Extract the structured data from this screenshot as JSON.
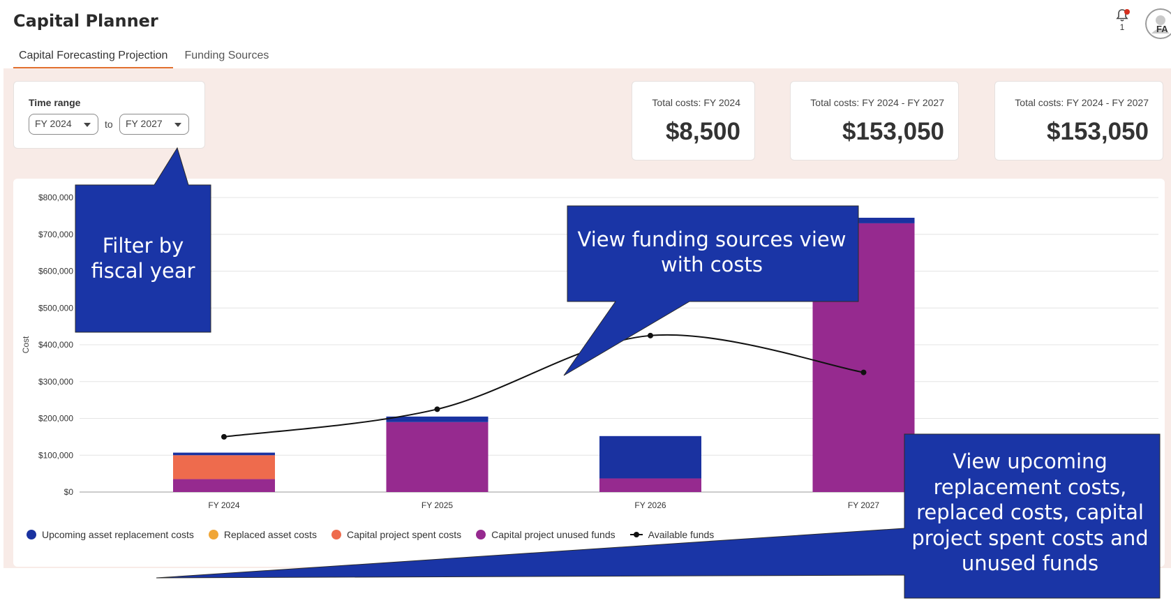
{
  "app": {
    "title": "Capital Planner"
  },
  "header": {
    "notification_count": "1",
    "avatar_initials": "FA",
    "bell_icon": "bell-icon"
  },
  "tabs": [
    {
      "label": "Capital Forecasting Projection",
      "active": true
    },
    {
      "label": "Funding Sources",
      "active": false
    }
  ],
  "time_range": {
    "label": "Time range",
    "from": "FY 2024",
    "to_word": "to",
    "to": "FY 2027"
  },
  "kpis": [
    {
      "label": "Total costs: FY 2024",
      "value": "$8,500"
    },
    {
      "label": "Total costs: FY 2024 - FY 2027",
      "value": "$153,050"
    },
    {
      "label": "Total costs: FY 2024 - FY 2027",
      "value": "$153,050"
    }
  ],
  "colors": {
    "upcoming": "#1a32a0",
    "replaced": "#f0a637",
    "spent": "#ee6b4d",
    "unused": "#962a8f",
    "available": "#111111",
    "accent": "#e2702f",
    "band": "#f8ebe7",
    "callout": "#1a35a6"
  },
  "chart_data": {
    "type": "bar",
    "stacked": true,
    "categories": [
      "FY 2024",
      "FY 2025",
      "FY 2026",
      "FY 2027"
    ],
    "ylabel": "Cost",
    "ylim": [
      0,
      800000
    ],
    "yticks": [
      "$0",
      "$100,000",
      "$200,000",
      "$300,000",
      "$400,000",
      "$500,000",
      "$600,000",
      "$700,000",
      "$800,000"
    ],
    "grid": true,
    "legend_position": "bottom-left",
    "series": [
      {
        "name": "Capital project unused funds",
        "key": "unused",
        "values": [
          35000,
          190000,
          37000,
          730000
        ]
      },
      {
        "name": "Capital project spent costs",
        "key": "spent",
        "values": [
          65000,
          0,
          0,
          0
        ]
      },
      {
        "name": "Replaced asset costs",
        "key": "replaced",
        "values": [
          0,
          0,
          0,
          0
        ]
      },
      {
        "name": "Upcoming asset replacement costs",
        "key": "upcoming",
        "values": [
          7000,
          15000,
          115000,
          15000
        ]
      }
    ],
    "line": {
      "name": "Available funds",
      "values": [
        150000,
        225000,
        425000,
        325000
      ]
    }
  },
  "legend": [
    {
      "label": "Upcoming asset replacement costs",
      "color_key": "upcoming",
      "kind": "dot"
    },
    {
      "label": "Replaced asset costs",
      "color_key": "replaced",
      "kind": "dot"
    },
    {
      "label": "Capital project spent costs",
      "color_key": "spent",
      "kind": "dot"
    },
    {
      "label": "Capital project unused funds",
      "color_key": "unused",
      "kind": "dot"
    },
    {
      "label": "Available funds",
      "color_key": "available",
      "kind": "line"
    }
  ],
  "callouts": {
    "filter": "Filter by fiscal year",
    "funding": "View funding sources view with costs",
    "costs": "View upcoming replacement costs, replaced costs, capital project spent costs and unused funds"
  }
}
